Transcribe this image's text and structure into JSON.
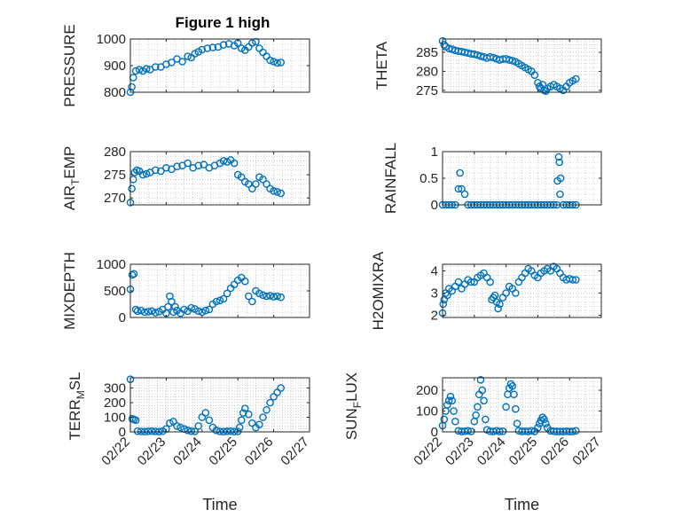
{
  "figure": {
    "title": "Figure 1 high"
  },
  "colors": {
    "marker": "#0072BD",
    "axis": "#262626",
    "grid": "#b0b0b0"
  },
  "x_tick_labels": [
    "02/22",
    "02/23",
    "02/24",
    "02/25",
    "02/26",
    "02/27"
  ],
  "x_axis_label": "Time",
  "chart_data": [
    {
      "id": "pressure",
      "type": "scatter",
      "ylabel": "PRESSURE",
      "ylim": [
        800,
        1000
      ],
      "yticks": [
        800,
        900,
        1000
      ],
      "x": [
        0.0,
        0.04,
        0.08,
        0.15,
        0.25,
        0.35,
        0.45,
        0.55,
        0.7,
        0.85,
        1.0,
        1.15,
        1.3,
        1.45,
        1.6,
        1.7,
        1.8,
        1.9,
        2.0,
        2.15,
        2.3,
        2.45,
        2.6,
        2.75,
        2.9,
        3.0,
        3.1,
        3.2,
        3.3,
        3.4,
        3.5,
        3.6,
        3.7,
        3.8,
        3.9,
        4.0,
        4.1,
        4.2
      ],
      "y": [
        800,
        820,
        855,
        880,
        885,
        880,
        888,
        885,
        895,
        895,
        905,
        912,
        925,
        915,
        935,
        930,
        945,
        952,
        960,
        965,
        968,
        970,
        978,
        982,
        975,
        985,
        965,
        958,
        970,
        985,
        990,
        965,
        950,
        935,
        920,
        915,
        910,
        912
      ]
    },
    {
      "id": "theta",
      "type": "scatter",
      "ylabel": "THETA",
      "ylim": [
        274.5,
        288.5
      ],
      "yticks": [
        275,
        280,
        285
      ],
      "x": [
        0.0,
        0.05,
        0.1,
        0.2,
        0.3,
        0.4,
        0.5,
        0.6,
        0.7,
        0.8,
        0.9,
        1.0,
        1.1,
        1.2,
        1.3,
        1.4,
        1.5,
        1.6,
        1.7,
        1.8,
        1.9,
        2.0,
        2.1,
        2.2,
        2.3,
        2.4,
        2.5,
        2.6,
        2.7,
        2.8,
        2.9,
        3.0,
        3.05,
        3.1,
        3.15,
        3.2,
        3.25,
        3.3,
        3.4,
        3.5,
        3.6,
        3.7,
        3.8,
        3.9,
        4.0,
        4.1,
        4.2
      ],
      "y": [
        288,
        287,
        286.5,
        286,
        285.8,
        285.5,
        285.3,
        285.2,
        285,
        284.8,
        284.6,
        284.5,
        284.3,
        284,
        283.8,
        283.5,
        283.8,
        283.6,
        283.3,
        283,
        283.2,
        283.3,
        283,
        282.8,
        282.5,
        282,
        281.5,
        281,
        280.5,
        280,
        279,
        277,
        276,
        275.5,
        276.5,
        275,
        274.8,
        275.5,
        276,
        276.5,
        276,
        275.5,
        275,
        276,
        277,
        277.5,
        278
      ]
    },
    {
      "id": "air_temp",
      "type": "scatter",
      "ylabel": "AIR_TEMP",
      "ylim": [
        268.5,
        280
      ],
      "yticks": [
        270,
        275,
        280
      ],
      "x": [
        0.0,
        0.04,
        0.08,
        0.12,
        0.18,
        0.25,
        0.35,
        0.45,
        0.55,
        0.7,
        0.85,
        1.0,
        1.15,
        1.3,
        1.45,
        1.6,
        1.75,
        1.9,
        2.05,
        2.2,
        2.35,
        2.5,
        2.6,
        2.7,
        2.8,
        2.9,
        3.0,
        3.1,
        3.2,
        3.3,
        3.4,
        3.5,
        3.6,
        3.7,
        3.8,
        3.9,
        4.0,
        4.1,
        4.2
      ],
      "y": [
        269,
        272,
        274,
        275.5,
        276,
        275.8,
        275,
        275.2,
        275.5,
        276,
        275.8,
        276.5,
        276.2,
        276.8,
        277,
        277.5,
        276.5,
        277,
        277.2,
        276.5,
        277,
        277.5,
        278,
        277.8,
        278.2,
        277.5,
        275,
        274.5,
        273.5,
        273,
        272,
        273,
        274.5,
        274,
        273,
        272,
        271.5,
        271.3,
        271
      ]
    },
    {
      "id": "rainfall",
      "type": "scatter",
      "ylabel": "RAINFALL",
      "ylim": [
        0,
        1
      ],
      "yticks": [
        0,
        0.5,
        1
      ],
      "x": [
        0.0,
        0.1,
        0.2,
        0.3,
        0.4,
        0.5,
        0.55,
        0.6,
        0.7,
        0.8,
        0.9,
        1.0,
        1.1,
        1.2,
        1.3,
        1.4,
        1.5,
        1.6,
        1.7,
        1.8,
        1.9,
        2.0,
        2.1,
        2.2,
        2.3,
        2.4,
        2.5,
        2.6,
        2.7,
        2.8,
        2.9,
        3.0,
        3.1,
        3.2,
        3.3,
        3.4,
        3.5,
        3.6,
        3.62,
        3.66,
        3.68,
        3.7,
        3.72,
        3.8,
        3.9,
        4.0,
        4.1,
        4.2
      ],
      "y": [
        0,
        0,
        0,
        0,
        0,
        0.3,
        0.6,
        0.3,
        0.2,
        0,
        0,
        0,
        0,
        0,
        0,
        0,
        0,
        0,
        0,
        0,
        0,
        0,
        0,
        0,
        0,
        0,
        0,
        0,
        0,
        0,
        0,
        0,
        0,
        0,
        0,
        0,
        0,
        0,
        0.45,
        0.9,
        0.8,
        0.2,
        0.5,
        0,
        0,
        0,
        0,
        0
      ]
    },
    {
      "id": "mixdepth",
      "type": "scatter",
      "ylabel": "MIXDEPTH",
      "ylim": [
        0,
        1000
      ],
      "yticks": [
        0,
        500,
        1000
      ],
      "x": [
        0.0,
        0.05,
        0.1,
        0.15,
        0.2,
        0.3,
        0.4,
        0.5,
        0.6,
        0.7,
        0.8,
        0.9,
        1.0,
        1.05,
        1.1,
        1.15,
        1.2,
        1.25,
        1.3,
        1.4,
        1.5,
        1.6,
        1.7,
        1.8,
        1.9,
        2.0,
        2.1,
        2.2,
        2.3,
        2.4,
        2.5,
        2.6,
        2.7,
        2.8,
        2.9,
        3.0,
        3.1,
        3.2,
        3.3,
        3.4,
        3.5,
        3.6,
        3.7,
        3.8,
        3.9,
        4.0,
        4.1,
        4.2
      ],
      "y": [
        530,
        800,
        820,
        150,
        120,
        130,
        100,
        110,
        120,
        90,
        110,
        150,
        80,
        200,
        400,
        300,
        100,
        200,
        130,
        80,
        150,
        120,
        180,
        160,
        120,
        100,
        130,
        150,
        250,
        300,
        320,
        350,
        450,
        550,
        620,
        700,
        750,
        680,
        400,
        300,
        500,
        450,
        420,
        400,
        410,
        390,
        400,
        380
      ]
    },
    {
      "id": "h2omixra",
      "type": "scatter",
      "ylabel": "H2OMIXRA",
      "ylim": [
        1.9,
        4.3
      ],
      "yticks": [
        2,
        3,
        4
      ],
      "x": [
        0.0,
        0.02,
        0.05,
        0.1,
        0.15,
        0.2,
        0.3,
        0.4,
        0.5,
        0.6,
        0.7,
        0.8,
        0.9,
        1.0,
        1.1,
        1.2,
        1.3,
        1.4,
        1.5,
        1.55,
        1.6,
        1.65,
        1.7,
        1.75,
        1.8,
        1.9,
        2.0,
        2.1,
        2.2,
        2.3,
        2.4,
        2.5,
        2.6,
        2.7,
        2.8,
        2.9,
        3.0,
        3.1,
        3.2,
        3.3,
        3.4,
        3.5,
        3.6,
        3.7,
        3.8,
        3.9,
        4.0,
        4.1,
        4.2
      ],
      "y": [
        2.1,
        2.5,
        2.7,
        3.0,
        2.9,
        3.2,
        3.1,
        3.3,
        3.5,
        3.2,
        3.4,
        3.6,
        3.5,
        3.5,
        3.7,
        3.8,
        3.9,
        3.7,
        3.5,
        2.7,
        2.8,
        2.9,
        2.6,
        2.3,
        2.5,
        2.8,
        3.0,
        3.3,
        3.2,
        3.0,
        3.5,
        3.7,
        3.9,
        4.1,
        4.0,
        3.8,
        3.7,
        3.9,
        4.0,
        4.1,
        4.0,
        4.2,
        4.1,
        3.9,
        3.7,
        3.6,
        3.65,
        3.6,
        3.6
      ]
    },
    {
      "id": "terr_msl",
      "type": "scatter",
      "ylabel": "TERR_MSL",
      "ylim": [
        0,
        370
      ],
      "yticks": [
        0,
        100,
        200,
        300
      ],
      "x": [
        0.0,
        0.05,
        0.1,
        0.15,
        0.2,
        0.3,
        0.4,
        0.5,
        0.6,
        0.7,
        0.8,
        0.9,
        1.0,
        1.1,
        1.2,
        1.3,
        1.4,
        1.5,
        1.6,
        1.7,
        1.8,
        1.9,
        2.0,
        2.1,
        2.2,
        2.3,
        2.4,
        2.5,
        2.6,
        2.7,
        2.8,
        2.9,
        3.0,
        3.05,
        3.1,
        3.15,
        3.2,
        3.3,
        3.4,
        3.5,
        3.6,
        3.7,
        3.8,
        3.9,
        4.0,
        4.1,
        4.2
      ],
      "y": [
        360,
        90,
        85,
        80,
        5,
        3,
        2,
        4,
        5,
        3,
        2,
        5,
        20,
        60,
        70,
        40,
        30,
        20,
        10,
        5,
        3,
        40,
        100,
        130,
        80,
        30,
        10,
        3,
        2,
        4,
        5,
        2,
        3,
        30,
        80,
        130,
        160,
        120,
        60,
        30,
        50,
        100,
        150,
        200,
        240,
        270,
        300
      ]
    },
    {
      "id": "sun_flux",
      "type": "scatter",
      "ylabel": "SUN_FLUX",
      "ylim": [
        0,
        260
      ],
      "yticks": [
        0,
        100,
        200
      ],
      "x": [
        0.0,
        0.05,
        0.1,
        0.15,
        0.2,
        0.25,
        0.3,
        0.35,
        0.4,
        0.5,
        0.6,
        0.7,
        0.8,
        0.9,
        1.0,
        1.05,
        1.1,
        1.15,
        1.2,
        1.25,
        1.3,
        1.35,
        1.4,
        1.5,
        1.6,
        1.7,
        1.8,
        1.9,
        2.0,
        2.05,
        2.1,
        2.15,
        2.2,
        2.25,
        2.3,
        2.35,
        2.4,
        2.5,
        2.6,
        2.7,
        2.8,
        2.9,
        3.0,
        3.05,
        3.1,
        3.15,
        3.2,
        3.25,
        3.3,
        3.4,
        3.5,
        3.6,
        3.7,
        3.8,
        3.9,
        4.0,
        4.1,
        4.2
      ],
      "y": [
        30,
        60,
        100,
        130,
        150,
        170,
        150,
        100,
        50,
        5,
        2,
        3,
        5,
        2,
        50,
        80,
        120,
        180,
        250,
        200,
        150,
        60,
        10,
        3,
        2,
        5,
        2,
        3,
        120,
        180,
        210,
        230,
        220,
        180,
        110,
        40,
        5,
        2,
        3,
        2,
        5,
        2,
        20,
        40,
        55,
        70,
        60,
        40,
        20,
        5,
        3,
        2,
        2,
        2,
        3,
        2,
        2,
        5
      ]
    }
  ]
}
